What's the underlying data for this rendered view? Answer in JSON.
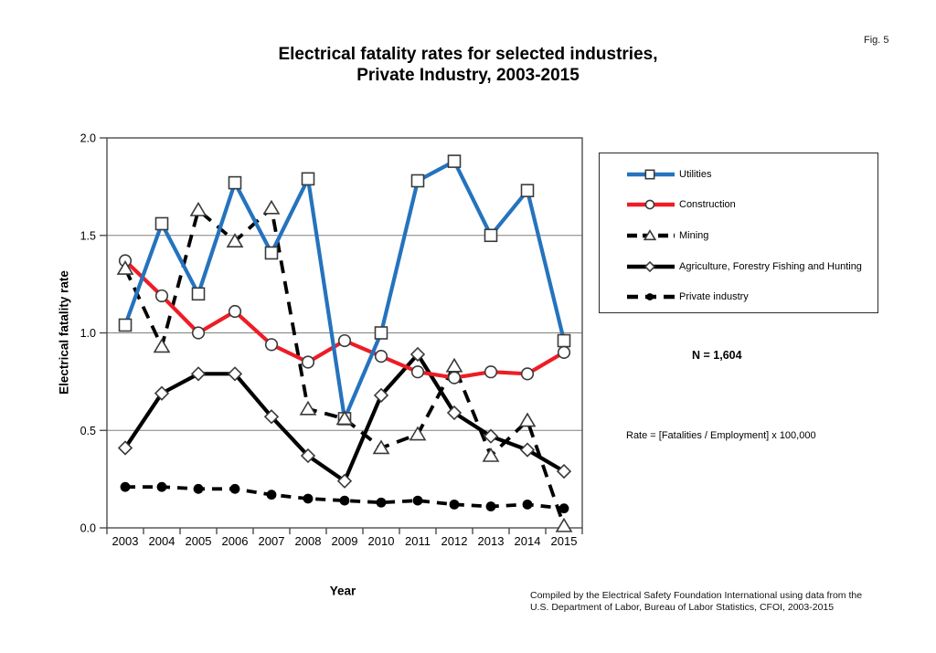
{
  "fig_label": "Fig. 5",
  "title_line1": "Electrical fatality rates for selected industries,",
  "title_line2": "Private Industry, 2003-2015",
  "ylabel": "Electrical fatality rate",
  "xlabel": "Year",
  "n_label": "N = 1,604",
  "rate_label": "Rate = [Fatalities / Employment] x 100,000",
  "footer_line1": "Compiled by the Electrical Safety Foundation International using data from the",
  "footer_line2": "U.S. Department of Labor, Bureau of Labor Statistics, CFOI, 2003-2015",
  "chart_data": {
    "type": "line",
    "title": "Electrical fatality rates for selected industries, Private Industry, 2003-2015",
    "xlabel": "Year",
    "ylabel": "Electrical fatality rate",
    "ylim": [
      0.0,
      2.0
    ],
    "yticks": [
      0.0,
      0.5,
      1.0,
      1.5,
      2.0
    ],
    "grid": true,
    "legend_position": "right",
    "categories": [
      "2003",
      "2004",
      "2005",
      "2006",
      "2007",
      "2008",
      "2009",
      "2010",
      "2011",
      "2012",
      "2013",
      "2014",
      "2015"
    ],
    "series": [
      {
        "name": "Utilities",
        "color": "#2573BE",
        "marker": "square",
        "line": "solid",
        "values": [
          1.04,
          1.56,
          1.2,
          1.77,
          1.41,
          1.79,
          0.56,
          1.0,
          1.78,
          1.88,
          1.5,
          1.73,
          0.96
        ]
      },
      {
        "name": "Construction",
        "color": "#EE1C25",
        "marker": "circle",
        "line": "solid",
        "values": [
          1.37,
          1.19,
          1.0,
          1.11,
          0.94,
          0.85,
          0.96,
          0.88,
          0.8,
          0.77,
          0.8,
          0.79,
          0.9
        ]
      },
      {
        "name": "Mining",
        "color": "#000000",
        "marker": "triangle",
        "line": "dashed",
        "values": [
          1.33,
          0.93,
          1.63,
          1.47,
          1.64,
          0.61,
          0.56,
          0.41,
          0.48,
          0.83,
          0.37,
          0.55,
          0.01
        ]
      },
      {
        "name": "Agriculture, Forestry Fishing and Hunting",
        "color": "#000000",
        "marker": "diamond",
        "line": "solid",
        "values": [
          0.41,
          0.69,
          0.79,
          0.79,
          0.57,
          0.37,
          0.24,
          0.68,
          0.89,
          0.59,
          0.47,
          0.4,
          0.29
        ]
      },
      {
        "name": "Private industry",
        "color": "#000000",
        "marker": "dot",
        "line": "dashed",
        "values": [
          0.21,
          0.21,
          0.2,
          0.2,
          0.17,
          0.15,
          0.14,
          0.13,
          0.14,
          0.12,
          0.11,
          0.12,
          0.1
        ]
      }
    ],
    "colors": {
      "grid": "#808080",
      "axis": "#404040",
      "marker_edge": "#3a3a3a"
    }
  }
}
